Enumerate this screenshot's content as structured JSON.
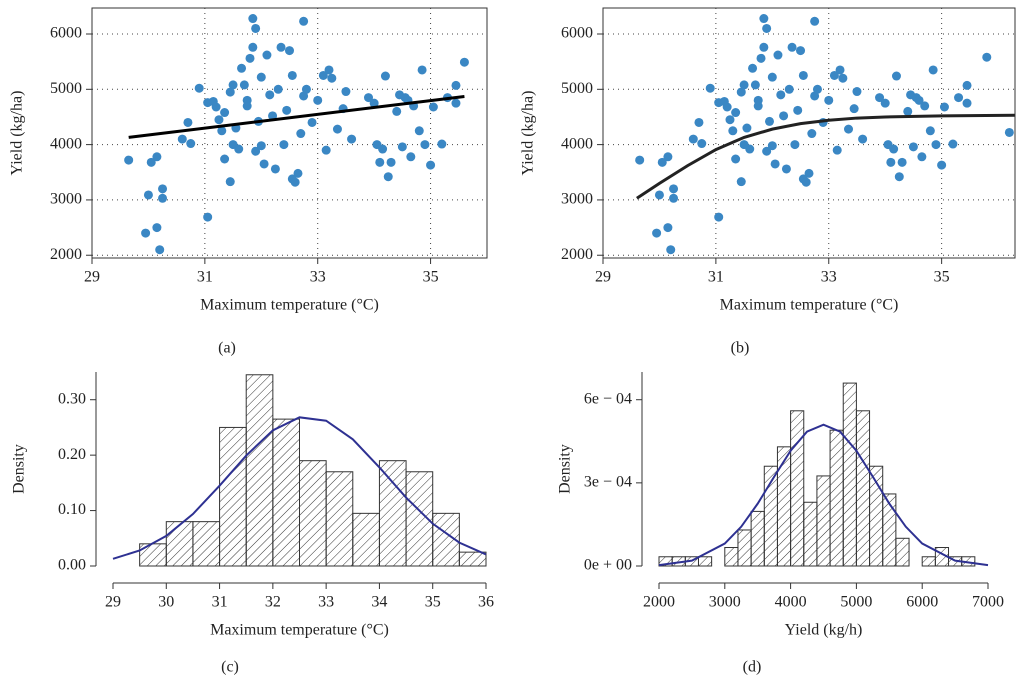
{
  "chart_data": [
    {
      "type": "scatter",
      "panel_label": "(a)",
      "x_label": "Maximum temperature (°C)",
      "y_label": "Yield (kg/ha)",
      "x": [
        29.65,
        29.95,
        30.0,
        30.05,
        30.15,
        30.15,
        30.2,
        30.25,
        30.25,
        30.6,
        30.75,
        30.7,
        30.9,
        31.05,
        31.05,
        31.15,
        31.2,
        31.25,
        31.3,
        31.35,
        31.35,
        31.45,
        31.45,
        31.5,
        31.5,
        31.55,
        31.6,
        31.65,
        31.7,
        31.75,
        31.75,
        31.8,
        31.85,
        31.85,
        31.9,
        31.9,
        31.95,
        32.0,
        32.0,
        32.05,
        32.1,
        32.15,
        32.2,
        32.25,
        32.3,
        32.35,
        32.4,
        32.45,
        32.5,
        32.55,
        32.55,
        32.6,
        32.65,
        32.7,
        32.75,
        32.75,
        32.8,
        32.9,
        33.0,
        33.1,
        33.15,
        33.2,
        33.25,
        33.35,
        33.45,
        33.5,
        33.6,
        33.9,
        34.0,
        34.05,
        34.1,
        34.15,
        34.2,
        34.25,
        34.3,
        34.4,
        34.45,
        34.5,
        34.55,
        34.6,
        34.65,
        34.7,
        34.8,
        34.85,
        34.9,
        35.0,
        35.05,
        35.2,
        35.3,
        35.45,
        35.45,
        35.6
      ],
      "values": [
        3720,
        2400,
        3090,
        3680,
        2500,
        3780,
        2100,
        3200,
        3030,
        4100,
        4020,
        4400,
        5020,
        2690,
        4760,
        4780,
        4680,
        4450,
        4250,
        3740,
        4580,
        3330,
        4950,
        5080,
        4000,
        4300,
        3920,
        5380,
        5080,
        4800,
        4700,
        5560,
        5760,
        6280,
        6100,
        3880,
        4420,
        5220,
        3980,
        3650,
        5620,
        4900,
        4520,
        3560,
        5000,
        5760,
        4000,
        4620,
        5700,
        5250,
        3380,
        3320,
        3480,
        4200,
        6230,
        4880,
        5000,
        4400,
        4800,
        5250,
        3900,
        5350,
        5200,
        4280,
        4650,
        4960,
        4100,
        4850,
        4750,
        4000,
        3680,
        3920,
        5240,
        3420,
        3680,
        4600,
        4900,
        3960,
        4850,
        4800,
        3780,
        4700,
        4250,
        5350,
        4000,
        3630,
        4680,
        4010,
        4850,
        5070,
        4750,
        5490
      ],
      "color": "#3a87c4",
      "fit": {
        "x": [
          29.65,
          35.6
        ],
        "values": [
          4130,
          4870
        ],
        "color": "#000000"
      },
      "xlim": [
        29,
        36
      ],
      "ylim": [
        1950,
        6470
      ],
      "xticks": [
        29,
        31,
        33,
        35
      ],
      "yticks": [
        2000,
        3000,
        4000,
        5000,
        6000
      ],
      "grid": true
    },
    {
      "type": "scatter",
      "panel_label": "(b)",
      "x_label": "Maximum temperature (°C)",
      "y_label": "Yield (kg/ha)",
      "x": [
        29.65,
        29.95,
        30.0,
        30.05,
        30.15,
        30.15,
        30.2,
        30.25,
        30.25,
        30.6,
        30.75,
        30.7,
        30.9,
        31.05,
        31.05,
        31.15,
        31.2,
        31.25,
        31.3,
        31.35,
        31.35,
        31.45,
        31.45,
        31.5,
        31.5,
        31.55,
        31.6,
        31.65,
        31.7,
        31.75,
        31.75,
        31.8,
        31.85,
        31.85,
        31.9,
        31.9,
        31.95,
        32.0,
        32.0,
        32.05,
        32.1,
        32.15,
        32.2,
        32.25,
        32.3,
        32.35,
        32.4,
        32.45,
        32.5,
        32.55,
        32.55,
        32.6,
        32.65,
        32.7,
        32.75,
        32.75,
        32.8,
        32.9,
        33.0,
        33.1,
        33.15,
        33.2,
        33.25,
        33.35,
        33.45,
        33.5,
        33.6,
        33.9,
        34.0,
        34.05,
        34.1,
        34.15,
        34.2,
        34.25,
        34.3,
        34.4,
        34.45,
        34.5,
        34.55,
        34.6,
        34.65,
        34.7,
        34.8,
        34.85,
        34.9,
        35.0,
        35.05,
        35.2,
        35.3,
        35.45,
        35.45,
        35.8,
        36.2
      ],
      "values": [
        3720,
        2400,
        3090,
        3680,
        2500,
        3780,
        2100,
        3200,
        3030,
        4100,
        4020,
        4400,
        5020,
        2690,
        4760,
        4780,
        4680,
        4450,
        4250,
        3740,
        4580,
        3330,
        4950,
        5080,
        4000,
        4300,
        3920,
        5380,
        5080,
        4800,
        4700,
        5560,
        5760,
        6280,
        6100,
        3880,
        4420,
        5220,
        3980,
        3650,
        5620,
        4900,
        4520,
        3560,
        5000,
        5760,
        4000,
        4620,
        5700,
        5250,
        3380,
        3320,
        3480,
        4200,
        6230,
        4880,
        5000,
        4400,
        4800,
        5250,
        3900,
        5350,
        5200,
        4280,
        4650,
        4960,
        4100,
        4850,
        4750,
        4000,
        3680,
        3920,
        5240,
        3420,
        3680,
        4600,
        4900,
        3960,
        4850,
        4800,
        3780,
        4700,
        4250,
        5350,
        4000,
        3630,
        4680,
        4010,
        4850,
        5070,
        4750,
        5580,
        4220
      ],
      "color": "#3a87c4",
      "fit": {
        "x": [
          29.6,
          30,
          30.5,
          31,
          31.5,
          32,
          32.5,
          33,
          33.5,
          34,
          35,
          36.3
        ],
        "values": [
          3030,
          3300,
          3620,
          3910,
          4130,
          4280,
          4380,
          4440,
          4480,
          4500,
          4520,
          4530
        ],
        "color": "#222222"
      },
      "xlim": [
        29,
        36.3
      ],
      "ylim": [
        1950,
        6470
      ],
      "xticks": [
        29,
        31,
        33,
        35
      ],
      "yticks": [
        2000,
        3000,
        4000,
        5000,
        6000
      ],
      "grid": true
    },
    {
      "type": "histogram",
      "panel_label": "(c)",
      "x_label": "Maximum temperature (°C)",
      "y_label": "Density",
      "bins": [
        29.5,
        30,
        30.5,
        31,
        31.5,
        32,
        32.5,
        33,
        33.5,
        34,
        34.5,
        35,
        35.5,
        36
      ],
      "values": [
        0.04,
        0.08,
        0.08,
        0.25,
        0.345,
        0.265,
        0.19,
        0.17,
        0.095,
        0.19,
        0.17,
        0.095,
        0.025
      ],
      "curve": {
        "x": [
          29,
          29.5,
          30,
          30.5,
          31,
          31.5,
          32,
          32.5,
          33,
          33.5,
          34,
          34.5,
          35,
          35.5,
          36
        ],
        "values": [
          0.0129,
          0.028,
          0.0543,
          0.0938,
          0.1449,
          0.1993,
          0.2448,
          0.2682,
          0.2621,
          0.2286,
          0.1779,
          0.1235,
          0.0764,
          0.0422,
          0.0208
        ],
        "color": "#2e3192"
      },
      "xlim": [
        29,
        36
      ],
      "ylim": [
        0,
        0.35
      ],
      "xticks": [
        29,
        30,
        31,
        32,
        33,
        34,
        35,
        36
      ],
      "yticks": [
        {
          "value": 0,
          "label": "0.00"
        },
        {
          "value": 0.1,
          "label": "0.10"
        },
        {
          "value": 0.2,
          "label": "0.20"
        },
        {
          "value": 0.3,
          "label": "0.30"
        }
      ]
    },
    {
      "type": "histogram",
      "panel_label": "(d)",
      "x_label": "Yield (kg/h)",
      "y_label": "Density",
      "bins": [
        2000,
        2200,
        2400,
        2600,
        2800,
        3000,
        3200,
        3400,
        3600,
        3800,
        4000,
        4200,
        4400,
        4600,
        4800,
        5000,
        5200,
        5400,
        5600,
        5800,
        6000,
        6200,
        6400,
        6600,
        6800
      ],
      "values": [
        3.33e-05,
        3.33e-05,
        3.33e-05,
        3.33e-05,
        0,
        6.67e-05,
        0.00013,
        0.000197,
        0.00036,
        0.00043,
        0.00056,
        0.00023,
        0.000325,
        0.00049,
        0.00066,
        0.00056,
        0.00036,
        0.00026,
        0.0001,
        0,
        3.33e-05,
        6.67e-05,
        3.33e-05,
        3.33e-05
      ],
      "curve": {
        "x": [
          2000,
          2500,
          3000,
          3250,
          3500,
          3750,
          4000,
          4250,
          4500,
          4750,
          5000,
          5250,
          5500,
          5750,
          6000,
          6500,
          7000
        ],
        "values": [
          3.1e-06,
          1.94e-05,
          8.1e-05,
          0.000142,
          0.000225,
          0.000322,
          0.000416,
          0.000485,
          0.00051,
          0.000485,
          0.000416,
          0.000322,
          0.000225,
          0.000142,
          8.1e-05,
          1.94e-05,
          3.1e-06
        ],
        "color": "#2e3192"
      },
      "xlim": [
        2000,
        7000
      ],
      "ylim": [
        0,
        0.0007
      ],
      "xticks": [
        2000,
        3000,
        4000,
        5000,
        6000,
        7000
      ],
      "yticks": [
        {
          "value": 0,
          "label": "0e + 00"
        },
        {
          "value": 0.0003,
          "label": "3e − 04"
        },
        {
          "value": 0.0006,
          "label": "6e − 04"
        }
      ]
    }
  ]
}
